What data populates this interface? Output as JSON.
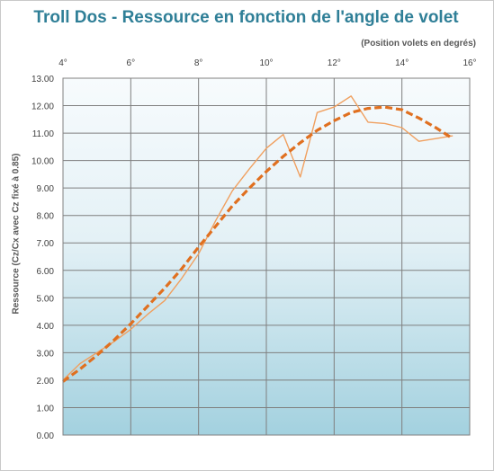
{
  "chart_data": {
    "type": "line",
    "title": "Troll Dos - Ressource en fonction de l'angle de volet",
    "xlabel": "(Position volets en degrés)",
    "ylabel": "Ressource (Cz/Cx avec Cz fixé à 0.85)",
    "xlim": [
      4,
      16
    ],
    "ylim": [
      0,
      13
    ],
    "x_axis_position": "top",
    "x_ticks": [
      4,
      6,
      8,
      10,
      12,
      14,
      16
    ],
    "x_tick_labels": [
      "4°",
      "6°",
      "8°",
      "10°",
      "12°",
      "14°",
      "16°"
    ],
    "y_ticks": [
      0,
      1,
      2,
      3,
      4,
      5,
      6,
      7,
      8,
      9,
      10,
      11,
      12,
      13
    ],
    "y_tick_labels": [
      "0.00",
      "1.00",
      "2.00",
      "3.00",
      "4.00",
      "5.00",
      "6.00",
      "7.00",
      "8.00",
      "9.00",
      "10.00",
      "11.00",
      "12.00",
      "13.00"
    ],
    "grid": true,
    "series": [
      {
        "style": "solid-thin",
        "color": "#f0a060",
        "x": [
          4.0,
          4.5,
          5.0,
          5.5,
          6.0,
          6.5,
          7.0,
          7.5,
          8.0,
          8.5,
          9.0,
          9.5,
          10.0,
          10.5,
          11.0,
          11.5,
          12.0,
          12.5,
          13.0,
          13.5,
          14.0,
          14.5,
          15.0,
          15.5
        ],
        "y": [
          2.0,
          2.6,
          3.0,
          3.4,
          3.85,
          4.4,
          4.9,
          5.7,
          6.6,
          7.8,
          8.9,
          9.7,
          10.45,
          10.95,
          9.4,
          11.75,
          11.95,
          12.35,
          11.4,
          11.35,
          11.2,
          10.7,
          10.8,
          10.9
        ]
      },
      {
        "style": "dashed-thick",
        "color": "#e07020",
        "x": [
          4.0,
          4.5,
          5.0,
          5.5,
          6.0,
          6.5,
          7.0,
          7.5,
          8.0,
          8.5,
          9.0,
          9.5,
          10.0,
          10.5,
          11.0,
          11.5,
          12.0,
          12.5,
          13.0,
          13.5,
          14.0,
          14.5,
          15.0,
          15.5
        ],
        "y": [
          1.95,
          2.4,
          2.9,
          3.45,
          4.05,
          4.7,
          5.35,
          6.05,
          6.85,
          7.6,
          8.35,
          9.0,
          9.6,
          10.15,
          10.65,
          11.1,
          11.45,
          11.75,
          11.9,
          11.95,
          11.85,
          11.55,
          11.2,
          10.8
        ]
      }
    ]
  }
}
